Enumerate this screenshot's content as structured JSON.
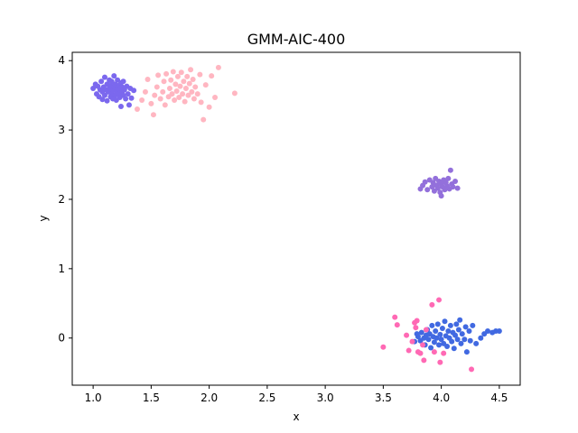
{
  "chart_data": {
    "type": "scatter",
    "title": "GMM-AIC-400",
    "xlabel": "x",
    "ylabel": "y",
    "xlim": [
      0.82,
      4.68
    ],
    "ylim": [
      -0.68,
      4.12
    ],
    "xticks": [
      1.0,
      1.5,
      2.0,
      2.5,
      3.0,
      3.5,
      4.0,
      4.5
    ],
    "xtick_labels": [
      "1.0",
      "1.5",
      "2.0",
      "2.5",
      "3.0",
      "3.5",
      "4.0",
      "4.5"
    ],
    "yticks": [
      0,
      1,
      2,
      3,
      4
    ],
    "ytick_labels": [
      "0",
      "1",
      "2",
      "3",
      "4"
    ],
    "grid": false,
    "series": [
      {
        "color": "#7B68EE",
        "points": [
          [
            1.0,
            3.6
          ],
          [
            1.02,
            3.66
          ],
          [
            1.03,
            3.52
          ],
          [
            1.04,
            3.63
          ],
          [
            1.05,
            3.48
          ],
          [
            1.06,
            3.58
          ],
          [
            1.07,
            3.7
          ],
          [
            1.08,
            3.55
          ],
          [
            1.08,
            3.44
          ],
          [
            1.09,
            3.62
          ],
          [
            1.1,
            3.76
          ],
          [
            1.1,
            3.5
          ],
          [
            1.11,
            3.58
          ],
          [
            1.12,
            3.66
          ],
          [
            1.12,
            3.42
          ],
          [
            1.13,
            3.55
          ],
          [
            1.14,
            3.72
          ],
          [
            1.14,
            3.6
          ],
          [
            1.15,
            3.48
          ],
          [
            1.15,
            3.64
          ],
          [
            1.16,
            3.52
          ],
          [
            1.16,
            3.7
          ],
          [
            1.17,
            3.57
          ],
          [
            1.17,
            3.45
          ],
          [
            1.18,
            3.62
          ],
          [
            1.18,
            3.78
          ],
          [
            1.19,
            3.5
          ],
          [
            1.19,
            3.66
          ],
          [
            1.2,
            3.56
          ],
          [
            1.2,
            3.43
          ],
          [
            1.21,
            3.6
          ],
          [
            1.21,
            3.72
          ],
          [
            1.22,
            3.52
          ],
          [
            1.22,
            3.64
          ],
          [
            1.23,
            3.47
          ],
          [
            1.23,
            3.58
          ],
          [
            1.24,
            3.68
          ],
          [
            1.24,
            3.34
          ],
          [
            1.25,
            3.55
          ],
          [
            1.25,
            3.62
          ],
          [
            1.26,
            3.5
          ],
          [
            1.26,
            3.7
          ],
          [
            1.27,
            3.58
          ],
          [
            1.28,
            3.45
          ],
          [
            1.29,
            3.63
          ],
          [
            1.3,
            3.52
          ],
          [
            1.31,
            3.36
          ],
          [
            1.32,
            3.6
          ],
          [
            1.33,
            3.46
          ],
          [
            1.35,
            3.57
          ]
        ]
      },
      {
        "color": "#FFB6C1",
        "points": [
          [
            1.38,
            3.3
          ],
          [
            1.42,
            3.43
          ],
          [
            1.45,
            3.55
          ],
          [
            1.47,
            3.73
          ],
          [
            1.5,
            3.38
          ],
          [
            1.52,
            3.22
          ],
          [
            1.53,
            3.5
          ],
          [
            1.55,
            3.62
          ],
          [
            1.56,
            3.79
          ],
          [
            1.58,
            3.45
          ],
          [
            1.6,
            3.55
          ],
          [
            1.61,
            3.7
          ],
          [
            1.62,
            3.36
          ],
          [
            1.63,
            3.81
          ],
          [
            1.65,
            3.48
          ],
          [
            1.66,
            3.6
          ],
          [
            1.67,
            3.72
          ],
          [
            1.68,
            3.52
          ],
          [
            1.69,
            3.84
          ],
          [
            1.7,
            3.43
          ],
          [
            1.71,
            3.66
          ],
          [
            1.72,
            3.56
          ],
          [
            1.73,
            3.77
          ],
          [
            1.74,
            3.47
          ],
          [
            1.75,
            3.63
          ],
          [
            1.76,
            3.83
          ],
          [
            1.77,
            3.52
          ],
          [
            1.78,
            3.7
          ],
          [
            1.79,
            3.41
          ],
          [
            1.8,
            3.6
          ],
          [
            1.81,
            3.77
          ],
          [
            1.82,
            3.5
          ],
          [
            1.83,
            3.67
          ],
          [
            1.84,
            3.87
          ],
          [
            1.85,
            3.55
          ],
          [
            1.86,
            3.73
          ],
          [
            1.87,
            3.45
          ],
          [
            1.88,
            3.62
          ],
          [
            1.9,
            3.52
          ],
          [
            1.92,
            3.8
          ],
          [
            1.93,
            3.4
          ],
          [
            1.95,
            3.15
          ],
          [
            1.97,
            3.65
          ],
          [
            2.0,
            3.33
          ],
          [
            2.02,
            3.78
          ],
          [
            2.05,
            3.47
          ],
          [
            2.08,
            3.9
          ],
          [
            2.22,
            3.53
          ]
        ]
      },
      {
        "color": "#9370DB",
        "points": [
          [
            3.82,
            2.15
          ],
          [
            3.84,
            2.2
          ],
          [
            3.86,
            2.25
          ],
          [
            3.88,
            2.14
          ],
          [
            3.9,
            2.28
          ],
          [
            3.92,
            2.18
          ],
          [
            3.93,
            2.24
          ],
          [
            3.94,
            2.12
          ],
          [
            3.95,
            2.3
          ],
          [
            3.96,
            2.2
          ],
          [
            3.97,
            2.16
          ],
          [
            3.98,
            2.26
          ],
          [
            3.99,
            2.1
          ],
          [
            4.0,
            2.22
          ],
          [
            4.0,
            2.05
          ],
          [
            4.01,
            2.18
          ],
          [
            4.02,
            2.28
          ],
          [
            4.03,
            2.14
          ],
          [
            4.04,
            2.24
          ],
          [
            4.05,
            2.19
          ],
          [
            4.06,
            2.3
          ],
          [
            4.07,
            2.15
          ],
          [
            4.08,
            2.42
          ],
          [
            4.09,
            2.22
          ],
          [
            4.1,
            2.18
          ],
          [
            4.12,
            2.26
          ],
          [
            4.14,
            2.16
          ]
        ]
      },
      {
        "color": "#4169E1",
        "points": [
          [
            3.77,
            -0.05
          ],
          [
            3.79,
            0.06
          ],
          [
            3.8,
            0.02
          ],
          [
            3.82,
            -0.04
          ],
          [
            3.83,
            0.08
          ],
          [
            3.85,
            0.0
          ],
          [
            3.86,
            -0.1
          ],
          [
            3.87,
            0.04
          ],
          [
            3.88,
            0.12
          ],
          [
            3.89,
            -0.02
          ],
          [
            3.9,
            0.06
          ],
          [
            3.91,
            -0.14
          ],
          [
            3.92,
            0.18
          ],
          [
            3.93,
            0.02
          ],
          [
            3.94,
            -0.06
          ],
          [
            3.95,
            0.1
          ],
          [
            3.96,
            0.0
          ],
          [
            3.97,
            0.2
          ],
          [
            3.98,
            -0.1
          ],
          [
            3.99,
            0.05
          ],
          [
            4.0,
            -0.02
          ],
          [
            4.01,
            0.14
          ],
          [
            4.02,
            -0.08
          ],
          [
            4.03,
            0.24
          ],
          [
            4.04,
            0.03
          ],
          [
            4.05,
            -0.12
          ],
          [
            4.06,
            0.1
          ],
          [
            4.07,
            0.0
          ],
          [
            4.08,
            0.18
          ],
          [
            4.09,
            -0.05
          ],
          [
            4.1,
            0.08
          ],
          [
            4.11,
            -0.15
          ],
          [
            4.12,
            0.04
          ],
          [
            4.13,
            0.2
          ],
          [
            4.14,
            -0.02
          ],
          [
            4.15,
            0.12
          ],
          [
            4.16,
            0.26
          ],
          [
            4.17,
            -0.08
          ],
          [
            4.18,
            0.06
          ],
          [
            4.2,
            -0.02
          ],
          [
            4.21,
            0.16
          ],
          [
            4.22,
            -0.2
          ],
          [
            4.24,
            0.1
          ],
          [
            4.25,
            -0.04
          ],
          [
            4.27,
            0.18
          ],
          [
            4.3,
            -0.08
          ],
          [
            4.34,
            0.0
          ],
          [
            4.37,
            0.06
          ],
          [
            4.4,
            0.1
          ],
          [
            4.44,
            0.08
          ],
          [
            4.47,
            0.1
          ],
          [
            4.5,
            0.1
          ]
        ]
      },
      {
        "color": "#FF69B4",
        "points": [
          [
            3.5,
            -0.13
          ],
          [
            3.6,
            0.3
          ],
          [
            3.62,
            0.19
          ],
          [
            3.7,
            0.04
          ],
          [
            3.72,
            -0.18
          ],
          [
            3.75,
            -0.05
          ],
          [
            3.77,
            0.22
          ],
          [
            3.78,
            0.15
          ],
          [
            3.79,
            0.25
          ],
          [
            3.8,
            -0.2
          ],
          [
            3.82,
            -0.22
          ],
          [
            3.84,
            -0.1
          ],
          [
            3.85,
            -0.32
          ],
          [
            3.87,
            0.12
          ],
          [
            3.92,
            0.48
          ],
          [
            3.94,
            -0.2
          ],
          [
            3.98,
            0.55
          ],
          [
            3.99,
            -0.35
          ],
          [
            4.02,
            -0.22
          ],
          [
            4.26,
            -0.45
          ]
        ]
      }
    ]
  }
}
